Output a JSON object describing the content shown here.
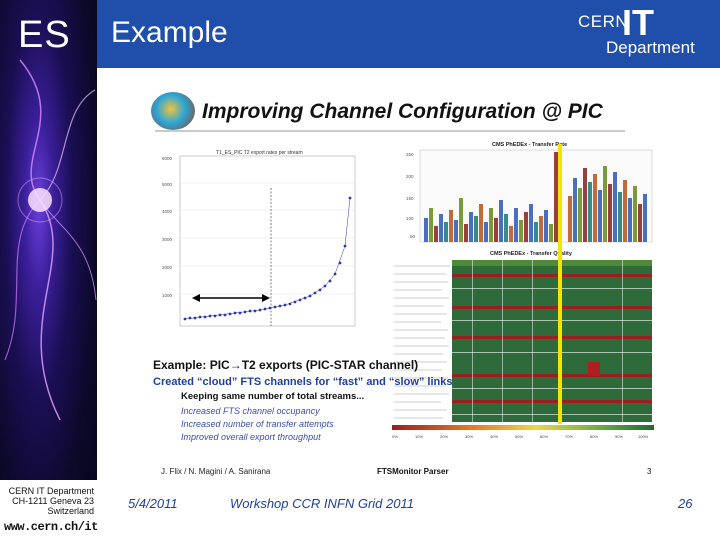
{
  "header": {
    "logo_text": "ES",
    "title": "Example",
    "cern_logo": {
      "cern": "CERN",
      "it": "IT",
      "department": "Department"
    }
  },
  "slide_image": {
    "title": "Improving Channel Configuration @ PIC",
    "left_chart_title": "T1_ES_PIC T2 export rates per stream",
    "transfer_rate_title": "CMS PhEDEx - Transfer Rate",
    "transfer_quality_title": "CMS PhEDEx - Transfer Quality",
    "example_line": "Example: PIC→T2 exports (PIC-STAR channel)",
    "created_line": "Created “cloud” FTS channels for “fast” and “slow” links",
    "keep_line": "Keeping same number of total streams...",
    "bullets": [
      "Increased FTS channel occupancy",
      "Increased number of transfer attempts",
      "Improved overall export throughput"
    ],
    "credits": "J. Flix / N. Magini / A. Sanirana",
    "parser": "FTSMonitor Parser",
    "page_number": "3",
    "quality_scale_labels": [
      "0%",
      "10%",
      "20%",
      "30%",
      "40%",
      "50%",
      "60%",
      "70%",
      "80%",
      "90%",
      "100%"
    ]
  },
  "footer": {
    "cern_line1": "CERN IT Department",
    "cern_line2": "CH-1211 Geneva 23",
    "cern_line3": "Switzerland",
    "url": "www.cern.ch/it",
    "date": "5/4/2011",
    "workshop": "Workshop CCR INFN Grid 2011",
    "page": "26"
  },
  "colors": {
    "header_bar": "#1f4faa",
    "footer_text": "#1f3f9f",
    "plasma": "#3b1f9a"
  }
}
